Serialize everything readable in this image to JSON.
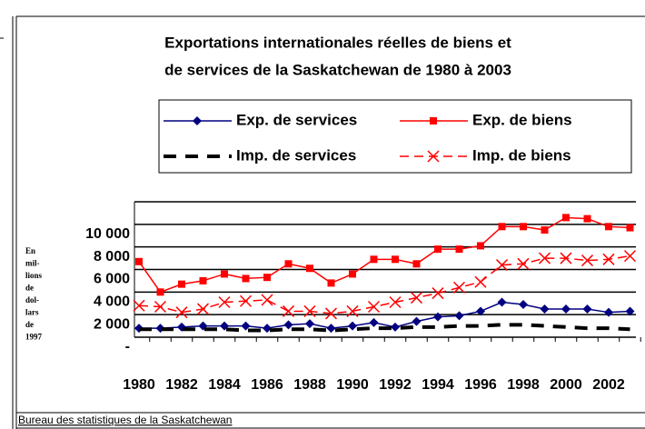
{
  "chart_data": {
    "type": "line",
    "title": [
      "Exportations internationales réelles de biens et",
      "de services de la Saskatchewan de 1980 à 2003"
    ],
    "y_axis_label": [
      "En",
      "mil-",
      "lions",
      "de",
      "dol-",
      "lars",
      "de",
      "1997"
    ],
    "source": "Bureau des statistiques de la Saskatchewan",
    "categories": [
      "1980",
      null,
      "1982",
      null,
      "1984",
      null,
      "1986",
      null,
      "1988",
      null,
      "1990",
      null,
      "1992",
      null,
      "1994",
      null,
      "1996",
      null,
      "1998",
      null,
      "2000",
      null,
      "2002",
      null
    ],
    "series": [
      {
        "name": "Exp. de services",
        "color": "#000080",
        "marker": "diamond",
        "dash": "none",
        "values": [
          800,
          800,
          900,
          1000,
          1000,
          1000,
          800,
          1100,
          1200,
          800,
          1000,
          1300,
          900,
          1400,
          1800,
          1900,
          2300,
          3100,
          2900,
          2500,
          2500,
          2500,
          2200,
          2300
        ]
      },
      {
        "name": "Exp. de biens",
        "color": "#ff0000",
        "marker": "square",
        "dash": "none",
        "values": [
          6700,
          4000,
          4700,
          5000,
          5600,
          5200,
          5300,
          6500,
          6100,
          4800,
          5600,
          6900,
          6900,
          6500,
          7800,
          7800,
          8100,
          9800,
          9800,
          9500,
          10600,
          10500,
          9800,
          9700
        ]
      },
      {
        "name": "Imp. de services",
        "color": "#000000",
        "marker": "none",
        "dash": "thick",
        "values": [
          700,
          700,
          700,
          700,
          700,
          600,
          600,
          700,
          700,
          600,
          700,
          800,
          800,
          900,
          900,
          1000,
          1000,
          1100,
          1100,
          1000,
          900,
          800,
          800,
          700
        ]
      },
      {
        "name": "Imp. de biens",
        "color": "#ff0000",
        "marker": "x",
        "dash": "dashed",
        "values": [
          2800,
          2700,
          2200,
          2500,
          3100,
          3200,
          3300,
          2300,
          2300,
          2100,
          2300,
          2700,
          3100,
          3500,
          3900,
          4400,
          4900,
          6400,
          6500,
          7000,
          7000,
          6800,
          6900,
          7200
        ]
      }
    ],
    "ylim": [
      0,
      12000
    ],
    "yticks": [
      {
        "value": 0,
        "label": "-"
      },
      {
        "value": 2000,
        "label": "2 000"
      },
      {
        "value": 4000,
        "label": "4 000"
      },
      {
        "value": 6000,
        "label": "6 000"
      },
      {
        "value": 8000,
        "label": "8 000"
      },
      {
        "value": 10000,
        "label": "10 000"
      },
      12000
    ],
    "grid": true
  }
}
